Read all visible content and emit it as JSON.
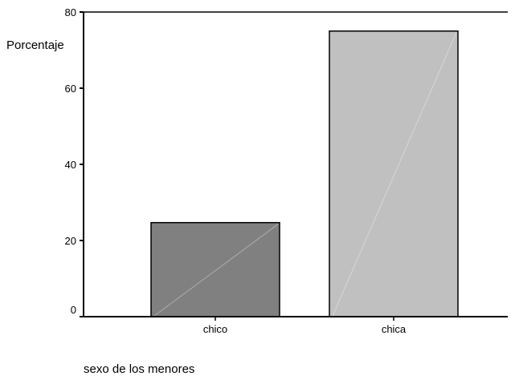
{
  "chart_data": {
    "type": "bar",
    "categories": [
      "chico",
      "chica"
    ],
    "values": [
      24.7,
      75.0
    ],
    "ylabel": "Porcentaje",
    "xlabel": "sexo de los menores",
    "ylim": [
      0,
      80
    ],
    "yticks": [
      0,
      20,
      40,
      60,
      80
    ],
    "grid": false,
    "colors": [
      "#808080",
      "#c0c0c0"
    ]
  }
}
